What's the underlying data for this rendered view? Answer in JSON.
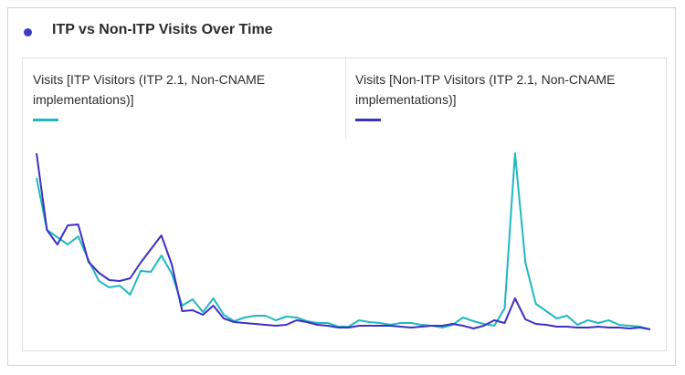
{
  "chart_data": {
    "type": "line",
    "title": "ITP vs Non-ITP Visits Over Time",
    "ylim": [
      0,
      215
    ],
    "series": [
      {
        "name": "Visits [ITP Visitors (ITP 2.1, Non-CNAME implementations)]",
        "color": "#1fb8c1",
        "values": [
          185,
          128,
          120,
          112,
          121,
          95,
          72,
          65,
          67,
          57,
          83,
          82,
          100,
          80,
          45,
          52,
          38,
          53,
          35,
          28,
          32,
          34,
          34,
          29,
          33,
          32,
          28,
          26,
          26,
          22,
          22,
          29,
          27,
          26,
          24,
          26,
          26,
          24,
          23,
          21,
          24,
          32,
          28,
          25,
          23,
          42,
          212,
          92,
          47,
          39,
          31,
          34,
          24,
          29,
          26,
          29,
          24,
          23,
          22,
          19
        ]
      },
      {
        "name": "Visits [Non-ITP Visitors (ITP 2.1, Non-CNAME implementations)]",
        "color": "#3d2fc2",
        "values": [
          212,
          128,
          112,
          133,
          134,
          93,
          81,
          73,
          72,
          75,
          92,
          107,
          122,
          90,
          39,
          40,
          35,
          45,
          31,
          27,
          26,
          25,
          24,
          23,
          24,
          29,
          27,
          24,
          23,
          21,
          21,
          23,
          23,
          23,
          23,
          22,
          21,
          22,
          23,
          23,
          25,
          23,
          20,
          23,
          29,
          26,
          53,
          30,
          25,
          24,
          22,
          22,
          21,
          21,
          22,
          21,
          21,
          20,
          21,
          19
        ]
      }
    ]
  }
}
